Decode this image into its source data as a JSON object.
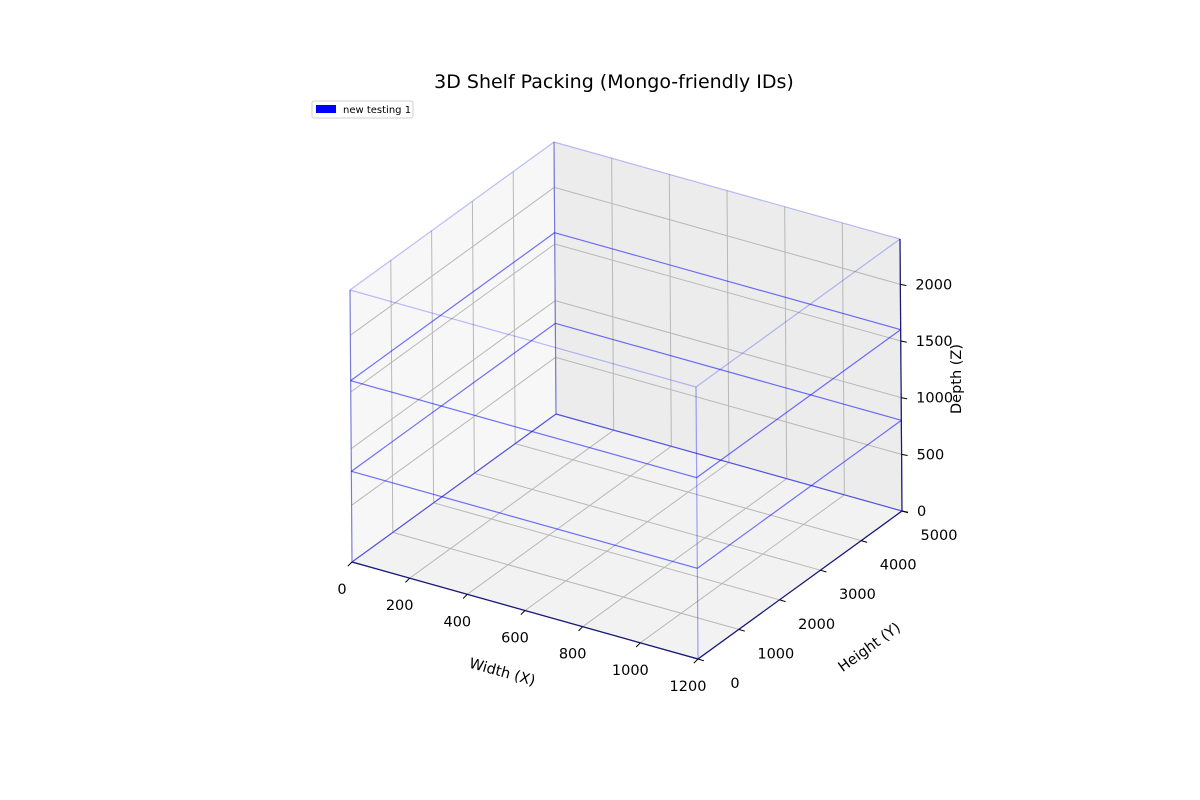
{
  "chart_data": {
    "type": "3d-box",
    "title": "3D Shelf Packing (Mongo-friendly IDs)",
    "legend": {
      "placement": "top-left",
      "entries": [
        {
          "label": "new testing 1",
          "color": "#0000ff"
        }
      ]
    },
    "axes": {
      "x": {
        "label": "Width (X)",
        "lim": [
          0,
          1200
        ],
        "ticks": [
          0,
          200,
          400,
          600,
          800,
          1000,
          1200
        ]
      },
      "y": {
        "label": "Height (Y)",
        "lim": [
          0,
          5000
        ],
        "ticks": [
          0,
          1000,
          2000,
          3000,
          4000,
          5000
        ]
      },
      "z": {
        "label": "Depth (Z)",
        "lim": [
          0,
          2400
        ],
        "ticks": [
          0,
          500,
          1000,
          1500,
          2000
        ]
      }
    },
    "grid": true,
    "shelf": {
      "name": "new testing 1",
      "color": "#0000ff",
      "width": 1200,
      "height": 5000,
      "depth": 2400,
      "levels": [
        0,
        800,
        1600,
        2400
      ]
    }
  }
}
